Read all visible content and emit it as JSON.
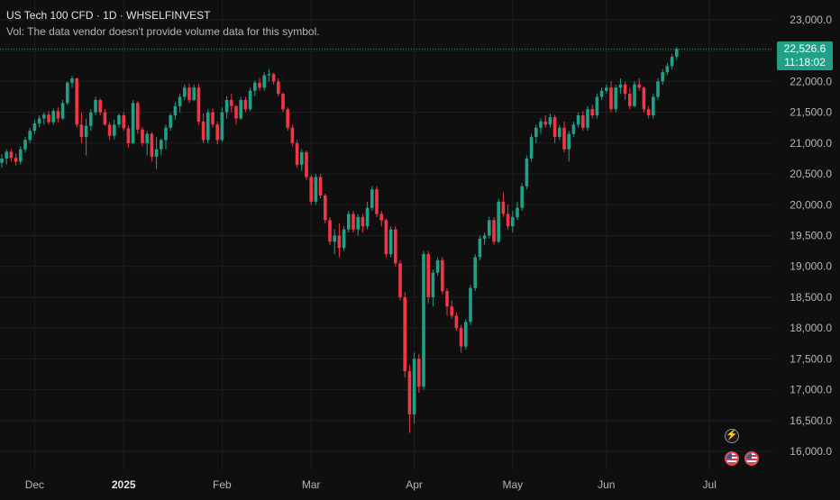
{
  "header": {
    "title": "US Tech 100 CFD · 1D · WHSELFINVEST",
    "volume_note": "Vol: The data vendor doesn't provide volume data for this symbol."
  },
  "last_price": {
    "price_label": "22,526.6",
    "countdown_label": "11:18:02",
    "value": 22526.6
  },
  "colors": {
    "up": "#22a087",
    "down": "#f23645",
    "background": "#0f0f0f",
    "grid": "#1f1f1f",
    "axis_text": "#b2b5be"
  },
  "events": {
    "bolt_icon": "lightning-icon",
    "flag_icon": "us-flag-icon"
  },
  "chart_data": {
    "type": "candlestick",
    "title": "US Tech 100 CFD",
    "interval": "1D",
    "source": "WHSELFINVEST",
    "y_ticks": [
      "23,000.0",
      "22,500.0",
      "22,000.0",
      "21,500.0",
      "21,000.0",
      "20,500.0",
      "20,000.0",
      "19,500.0",
      "19,000.0",
      "18,500.0",
      "18,000.0",
      "17,500.0",
      "17,000.0",
      "16,500.0",
      "16,000.0"
    ],
    "ylim": [
      15750,
      23150
    ],
    "x_ticks": [
      {
        "label": "Dec",
        "bold": false,
        "index": 7
      },
      {
        "label": "2025",
        "bold": true,
        "index": 26
      },
      {
        "label": "Feb",
        "bold": false,
        "index": 47
      },
      {
        "label": "Mar",
        "bold": false,
        "index": 66
      },
      {
        "label": "Apr",
        "bold": false,
        "index": 88
      },
      {
        "label": "May",
        "bold": false,
        "index": 109
      },
      {
        "label": "Jun",
        "bold": false,
        "index": 129
      },
      {
        "label": "Jul",
        "bold": false,
        "index": 151
      }
    ],
    "grid": true,
    "last_price_line": 22526.6,
    "ohlc": [
      [
        20680,
        20820,
        20600,
        20750
      ],
      [
        20750,
        20900,
        20650,
        20860
      ],
      [
        20860,
        20900,
        20700,
        20760
      ],
      [
        20760,
        20830,
        20640,
        20700
      ],
      [
        20700,
        20950,
        20650,
        20900
      ],
      [
        20900,
        21100,
        20850,
        21050
      ],
      [
        21050,
        21250,
        21000,
        21200
      ],
      [
        21200,
        21380,
        21150,
        21320
      ],
      [
        21320,
        21450,
        21260,
        21400
      ],
      [
        21400,
        21500,
        21300,
        21460
      ],
      [
        21460,
        21520,
        21300,
        21340
      ],
      [
        21340,
        21560,
        21300,
        21520
      ],
      [
        21520,
        21580,
        21330,
        21400
      ],
      [
        21400,
        21700,
        21380,
        21650
      ],
      [
        21650,
        22000,
        21620,
        21980
      ],
      [
        21980,
        22090,
        21900,
        22050
      ],
      [
        22050,
        22060,
        21250,
        21300
      ],
      [
        21300,
        21500,
        21000,
        21100
      ],
      [
        21100,
        21400,
        20800,
        21280
      ],
      [
        21280,
        21550,
        21200,
        21500
      ],
      [
        21500,
        21750,
        21450,
        21700
      ],
      [
        21700,
        21720,
        21450,
        21500
      ],
      [
        21500,
        21550,
        21280,
        21300
      ],
      [
        21300,
        21340,
        21050,
        21120
      ],
      [
        21120,
        21380,
        21060,
        21300
      ],
      [
        21300,
        21480,
        21250,
        21450
      ],
      [
        21450,
        21500,
        21200,
        21240
      ],
      [
        21240,
        21290,
        20920,
        21000
      ],
      [
        21000,
        21700,
        20980,
        21650
      ],
      [
        21650,
        21680,
        21150,
        21220
      ],
      [
        21220,
        21260,
        20950,
        21000
      ],
      [
        21000,
        21200,
        20800,
        21150
      ],
      [
        21150,
        21180,
        20700,
        20780
      ],
      [
        20780,
        21100,
        20580,
        20900
      ],
      [
        20900,
        21080,
        20800,
        21050
      ],
      [
        21050,
        21300,
        20900,
        21250
      ],
      [
        21250,
        21480,
        21200,
        21450
      ],
      [
        21450,
        21660,
        21380,
        21600
      ],
      [
        21600,
        21800,
        21500,
        21750
      ],
      [
        21750,
        21950,
        21700,
        21900
      ],
      [
        21900,
        21960,
        21650,
        21700
      ],
      [
        21700,
        21950,
        21680,
        21900
      ],
      [
        21900,
        21960,
        21300,
        21350
      ],
      [
        21350,
        21480,
        21000,
        21050
      ],
      [
        21050,
        21550,
        21000,
        21500
      ],
      [
        21500,
        21560,
        21250,
        21300
      ],
      [
        21300,
        21350,
        20980,
        21050
      ],
      [
        21050,
        21580,
        21020,
        21500
      ],
      [
        21500,
        21760,
        21400,
        21700
      ],
      [
        21700,
        21800,
        21500,
        21600
      ],
      [
        21600,
        21620,
        21300,
        21400
      ],
      [
        21400,
        21750,
        21380,
        21700
      ],
      [
        21700,
        21750,
        21500,
        21550
      ],
      [
        21550,
        21900,
        21520,
        21850
      ],
      [
        21850,
        22020,
        21760,
        21980
      ],
      [
        21980,
        22060,
        21850,
        21900
      ],
      [
        21900,
        22150,
        21850,
        22100
      ],
      [
        22100,
        22200,
        22000,
        22120
      ],
      [
        22120,
        22140,
        21950,
        22000
      ],
      [
        22000,
        22050,
        21760,
        21800
      ],
      [
        21800,
        21820,
        21500,
        21550
      ],
      [
        21550,
        21580,
        21200,
        21250
      ],
      [
        21250,
        21300,
        20950,
        21000
      ],
      [
        21000,
        21050,
        20600,
        20650
      ],
      [
        20650,
        20900,
        20550,
        20850
      ],
      [
        20850,
        20880,
        20400,
        20450
      ],
      [
        20450,
        20480,
        20000,
        20050
      ],
      [
        20050,
        20500,
        20000,
        20450
      ],
      [
        20450,
        20500,
        20100,
        20150
      ],
      [
        20150,
        20180,
        19700,
        19750
      ],
      [
        19750,
        19800,
        19350,
        19400
      ],
      [
        19400,
        19600,
        19200,
        19500
      ],
      [
        19500,
        19700,
        19150,
        19300
      ],
      [
        19300,
        19650,
        19250,
        19600
      ],
      [
        19600,
        19900,
        19550,
        19850
      ],
      [
        19850,
        19900,
        19550,
        19600
      ],
      [
        19600,
        19850,
        19500,
        19800
      ],
      [
        19800,
        19850,
        19550,
        19650
      ],
      [
        19650,
        20050,
        19600,
        19950
      ],
      [
        19950,
        20300,
        19900,
        20250
      ],
      [
        20250,
        20300,
        19800,
        19850
      ],
      [
        19850,
        19900,
        19650,
        19750
      ],
      [
        19750,
        19780,
        19150,
        19200
      ],
      [
        19200,
        19650,
        19150,
        19600
      ],
      [
        19600,
        19650,
        19000,
        19050
      ],
      [
        19050,
        19100,
        18450,
        18500
      ],
      [
        18500,
        18580,
        17200,
        17300
      ],
      [
        17300,
        17400,
        16300,
        16600
      ],
      [
        16600,
        17600,
        16450,
        17500
      ],
      [
        17500,
        17580,
        16950,
        17050
      ],
      [
        17050,
        19250,
        17000,
        19200
      ],
      [
        19200,
        19250,
        18400,
        18500
      ],
      [
        18500,
        18950,
        18350,
        18900
      ],
      [
        18900,
        19150,
        18850,
        19100
      ],
      [
        19100,
        19150,
        18550,
        18600
      ],
      [
        18600,
        18650,
        18200,
        18350
      ],
      [
        18350,
        18450,
        18150,
        18200
      ],
      [
        18200,
        18250,
        17950,
        18000
      ],
      [
        18000,
        18050,
        17600,
        17700
      ],
      [
        17700,
        18150,
        17650,
        18100
      ],
      [
        18100,
        18700,
        18050,
        18650
      ],
      [
        18650,
        19200,
        18600,
        19150
      ],
      [
        19150,
        19500,
        19100,
        19450
      ],
      [
        19450,
        19550,
        19350,
        19500
      ],
      [
        19500,
        19800,
        19450,
        19750
      ],
      [
        19750,
        19800,
        19350,
        19400
      ],
      [
        19400,
        20100,
        19380,
        20050
      ],
      [
        20050,
        20200,
        19800,
        19850
      ],
      [
        19850,
        20000,
        19600,
        19650
      ],
      [
        19650,
        19900,
        19550,
        19800
      ],
      [
        19800,
        20050,
        19750,
        19950
      ],
      [
        19950,
        20350,
        19900,
        20300
      ],
      [
        20300,
        20800,
        20250,
        20750
      ],
      [
        20750,
        21150,
        20700,
        21100
      ],
      [
        21100,
        21300,
        21000,
        21250
      ],
      [
        21250,
        21400,
        21150,
        21350
      ],
      [
        21350,
        21450,
        21250,
        21300
      ],
      [
        21300,
        21480,
        21250,
        21420
      ],
      [
        21420,
        21460,
        21000,
        21100
      ],
      [
        21100,
        21300,
        21050,
        21250
      ],
      [
        21250,
        21350,
        20850,
        20900
      ],
      [
        20900,
        21200,
        20700,
        21150
      ],
      [
        21150,
        21350,
        21100,
        21300
      ],
      [
        21300,
        21500,
        21250,
        21450
      ],
      [
        21450,
        21520,
        21200,
        21250
      ],
      [
        21250,
        21600,
        21200,
        21550
      ],
      [
        21550,
        21620,
        21400,
        21450
      ],
      [
        21450,
        21800,
        21400,
        21750
      ],
      [
        21750,
        21900,
        21700,
        21850
      ],
      [
        21850,
        21950,
        21800,
        21900
      ],
      [
        21900,
        22000,
        21500,
        21550
      ],
      [
        21550,
        21950,
        21500,
        21900
      ],
      [
        21900,
        22050,
        21800,
        21950
      ],
      [
        21950,
        22000,
        21700,
        21800
      ],
      [
        21800,
        21900,
        21550,
        21600
      ],
      [
        21600,
        22000,
        21580,
        21950
      ],
      [
        21950,
        22050,
        21850,
        21900
      ],
      [
        21900,
        21920,
        21500,
        21550
      ],
      [
        21550,
        21600,
        21400,
        21450
      ],
      [
        21450,
        21800,
        21400,
        21750
      ],
      [
        21750,
        22050,
        21700,
        22000
      ],
      [
        22000,
        22200,
        21950,
        22150
      ],
      [
        22150,
        22300,
        22100,
        22250
      ],
      [
        22250,
        22450,
        22200,
        22400
      ],
      [
        22400,
        22560,
        22350,
        22526.6
      ]
    ]
  }
}
